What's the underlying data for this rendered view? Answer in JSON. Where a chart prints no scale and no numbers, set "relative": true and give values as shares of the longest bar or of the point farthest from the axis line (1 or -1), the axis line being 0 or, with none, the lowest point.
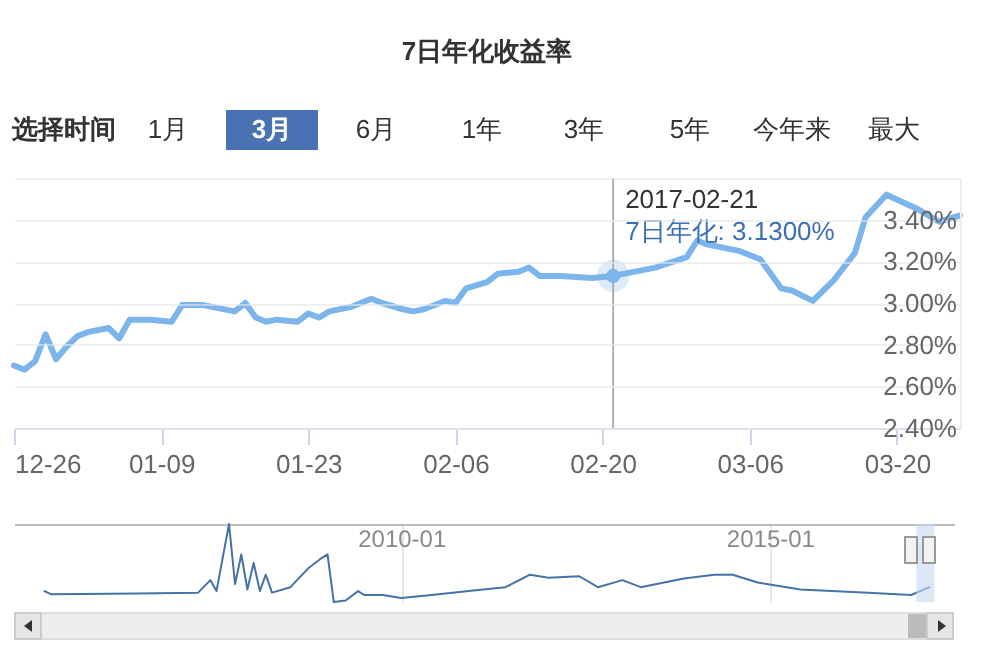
{
  "chart_data": [
    {
      "type": "line",
      "title": "7日年化收益率",
      "x": [
        "2016-12-26",
        "2016-12-27",
        "2016-12-28",
        "2016-12-29",
        "2016-12-30",
        "2016-12-31",
        "2017-01-01",
        "2017-01-02",
        "2017-01-04",
        "2017-01-05",
        "2017-01-06",
        "2017-01-08",
        "2017-01-10",
        "2017-01-11",
        "2017-01-13",
        "2017-01-16",
        "2017-01-17",
        "2017-01-18",
        "2017-01-19",
        "2017-01-20",
        "2017-01-22",
        "2017-01-23",
        "2017-01-24",
        "2017-01-25",
        "2017-01-27",
        "2017-01-29",
        "2017-01-30",
        "2017-02-01",
        "2017-02-02",
        "2017-02-03",
        "2017-02-05",
        "2017-02-06",
        "2017-02-07",
        "2017-02-09",
        "2017-02-10",
        "2017-02-12",
        "2017-02-13",
        "2017-02-14",
        "2017-02-16",
        "2017-02-19",
        "2017-02-21",
        "2017-02-22",
        "2017-02-25",
        "2017-02-28",
        "2017-03-01",
        "2017-03-02",
        "2017-03-05",
        "2017-03-07",
        "2017-03-09",
        "2017-03-10",
        "2017-03-12",
        "2017-03-14",
        "2017-03-16",
        "2017-03-17",
        "2017-03-19",
        "2017-03-22",
        "2017-03-24",
        "2017-03-26"
      ],
      "series": [
        {
          "color": "#7cb5ec",
          "values": [
            2.7,
            2.68,
            2.72,
            2.85,
            2.73,
            2.79,
            2.84,
            2.86,
            2.88,
            2.83,
            2.92,
            2.92,
            2.91,
            2.99,
            2.99,
            2.96,
            3.0,
            2.93,
            2.91,
            2.92,
            2.91,
            2.95,
            2.93,
            2.96,
            2.98,
            3.02,
            3.0,
            2.97,
            2.96,
            2.97,
            3.01,
            3.0,
            3.07,
            3.1,
            3.14,
            3.15,
            3.17,
            3.13,
            3.13,
            3.12,
            3.13,
            3.14,
            3.17,
            3.22,
            3.3,
            3.28,
            3.25,
            3.21,
            3.07,
            3.06,
            3.01,
            3.11,
            3.24,
            3.41,
            3.52,
            3.45,
            3.39,
            3.42
          ]
        }
      ],
      "xlim": [
        "2016-12-26",
        "2017-03-26"
      ],
      "xticks": [
        {
          "value": "2016-12-26",
          "label": "12-26"
        },
        {
          "value": "2017-01-09",
          "label": "01-09"
        },
        {
          "value": "2017-01-23",
          "label": "01-23"
        },
        {
          "value": "2017-02-06",
          "label": "02-06"
        },
        {
          "value": "2017-02-20",
          "label": "02-20"
        },
        {
          "value": "2017-03-06",
          "label": "03-06"
        },
        {
          "value": "2017-03-20",
          "label": "03-20"
        }
      ],
      "ylim": [
        2.4,
        3.6
      ],
      "yticks": [
        {
          "value": 2.4,
          "label": "2.40%"
        },
        {
          "value": 2.6,
          "label": "2.60%"
        },
        {
          "value": 2.8,
          "label": "2.80%"
        },
        {
          "value": 3.0,
          "label": "3.00%"
        },
        {
          "value": 3.2,
          "label": "3.20%"
        },
        {
          "value": 3.4,
          "label": "3.40%"
        },
        {
          "value": 3.6,
          "label": null
        }
      ],
      "grid": "y",
      "ref_lines": [
        {
          "axis": "x",
          "value": "2017-02-21",
          "color": "#b0b0b0"
        }
      ],
      "annotations": [
        "选择时间",
        "1月",
        "3月",
        "6月",
        "1年",
        "3年",
        "5年",
        "今年来",
        "最大",
        {
          "text": "2017-02-21\n7日年化: 3.1300%",
          "x": "2017-02-21",
          "y": 3.13
        }
      ]
    },
    {
      "type": "line",
      "relative": true,
      "x": [
        "2005-03",
        "2005-04",
        "2006-06",
        "2007-04",
        "2007-06",
        "2007-07",
        "2007-09",
        "2007-10",
        "2007-11",
        "2007-12",
        "2008-01",
        "2008-02",
        "2008-03",
        "2008-04",
        "2008-07",
        "2008-10",
        "2008-11",
        "2008-12",
        "2009-01",
        "2009-02",
        "2009-04",
        "2009-06",
        "2009-07",
        "2009-10",
        "2010-01",
        "2010-06",
        "2010-12",
        "2011-06",
        "2011-10",
        "2012-01",
        "2012-06",
        "2012-09",
        "2013-01",
        "2013-04",
        "2013-11",
        "2014-04",
        "2014-07",
        "2014-11",
        "2015-06",
        "2016-05",
        "2016-12",
        "2017-03"
      ],
      "series": [
        {
          "color": "#4572a7",
          "values": [
            0.14,
            0.1,
            0.11,
            0.12,
            0.28,
            0.14,
            1,
            0.23,
            0.61,
            0.16,
            0.5,
            0.14,
            0.35,
            0.12,
            0.19,
            0.44,
            0.5,
            0.56,
            0.61,
            0,
            0.02,
            0.14,
            0.09,
            0.09,
            0.05,
            0.09,
            0.14,
            0.19,
            0.35,
            0.31,
            0.33,
            0.19,
            0.28,
            0.19,
            0.3,
            0.35,
            0.35,
            0.25,
            0.16,
            0.12,
            0.09,
            0.19
          ]
        }
      ],
      "xlim": [
        "2004-10",
        "2017-07"
      ],
      "xticks": [
        "2010-01",
        "2015-01"
      ],
      "grid": "x",
      "bands": [
        {
          "axis": "x",
          "from": "2016-12-26",
          "to": "2017-03-26",
          "color": "#c5d9ef"
        }
      ]
    }
  ]
}
